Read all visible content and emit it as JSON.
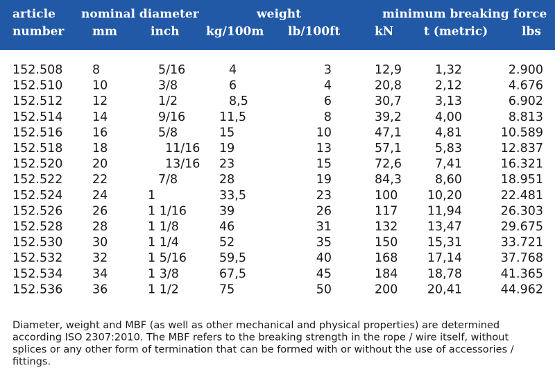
{
  "header": {
    "article": [
      "article",
      "number"
    ],
    "nominal_diameter": "nominal diameter",
    "mm": "mm",
    "inch": "inch",
    "weight": "weight",
    "kg": "kg/100m",
    "lb": "lb/100ft",
    "mbf": "minimum breaking force",
    "kn": "kN",
    "t": "t (metric)",
    "lbs": "lbs"
  },
  "table": {
    "rows": [
      [
        "152.508",
        "8",
        "5/16",
        "4",
        "3",
        "12,9",
        "1,32",
        "2.900"
      ],
      [
        "152.510",
        "10",
        "3/8",
        "6",
        "4",
        "20,8",
        "2,12",
        "4.676"
      ],
      [
        "152.512",
        "12",
        "1/2",
        "8,5",
        "6",
        "30,7",
        "3,13",
        "6.902"
      ],
      [
        "152.514",
        "14",
        "9/16",
        "11,5",
        "8",
        "39,2",
        "4,00",
        "8.813"
      ],
      [
        "152.516",
        "16",
        "5/8",
        "15",
        "10",
        "47,1",
        "4,81",
        "10.589"
      ],
      [
        "152.518",
        "18",
        "11/16",
        "19",
        "13",
        "57,1",
        "5,83",
        "12.837"
      ],
      [
        "152.520",
        "20",
        "13/16",
        "23",
        "15",
        "72,6",
        "7,41",
        "16.321"
      ],
      [
        "152.522",
        "22",
        "7/8",
        "28",
        "19",
        "84,3",
        "8,60",
        "18.951"
      ],
      [
        "152.524",
        "24",
        "1",
        "33,5",
        "23",
        "100",
        "10,20",
        "22.481"
      ],
      [
        "152.526",
        "26",
        "1 1/16",
        "39",
        "26",
        "117",
        "11,94",
        "26.303"
      ],
      [
        "152.528",
        "28",
        "1 1/8",
        "46",
        "31",
        "132",
        "13,47",
        "29.675"
      ],
      [
        "152.530",
        "30",
        "1 1/4",
        "52",
        "35",
        "150",
        "15,31",
        "33.721"
      ],
      [
        "152.532",
        "32",
        "1 5/16",
        "59,5",
        "40",
        "168",
        "17,14",
        "37.768"
      ],
      [
        "152.534",
        "34",
        "1 3/8",
        "67,5",
        "45",
        "184",
        "18,78",
        "41.365"
      ],
      [
        "152.536",
        "36",
        "1 1/2",
        "75",
        "50",
        "200",
        "20,41",
        "44.962"
      ]
    ]
  },
  "footnote": [
    "Diameter, weight and MBF (as well as other mechanical and physical properties) are determined",
    "according ISO 2307:2010. The MBF refers to the breaking strength in the rope / wire itself, without",
    "splices or any other form of termination that can be formed with or without the use of accessories /",
    "fittings."
  ]
}
